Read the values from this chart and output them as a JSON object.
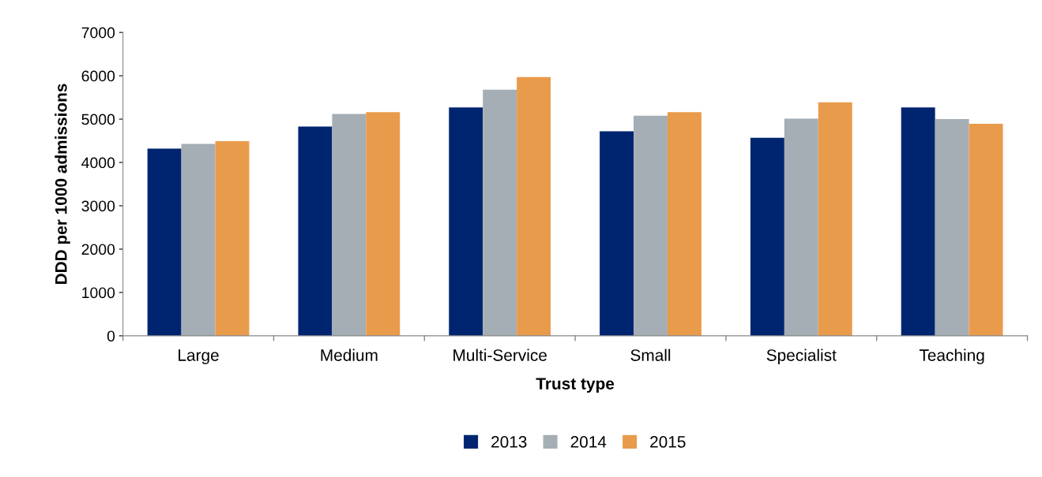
{
  "chart_data": {
    "type": "bar",
    "xlabel": "Trust type",
    "ylabel": "DDD per 1000 admissions",
    "categories": [
      "Large",
      "Medium",
      "Multi-Service",
      "Small",
      "Specialist",
      "Teaching"
    ],
    "series": [
      {
        "name": "2013",
        "color": "#002570",
        "values": [
          4320,
          4830,
          5270,
          4720,
          4570,
          5270
        ]
      },
      {
        "name": "2014",
        "color": "#a5aeb5",
        "values": [
          4430,
          5120,
          5680,
          5080,
          5010,
          5000
        ]
      },
      {
        "name": "2015",
        "color": "#e99b4c",
        "values": [
          4490,
          5160,
          5970,
          5160,
          5390,
          4890
        ]
      }
    ],
    "ylim": [
      0,
      7000
    ],
    "yticks": [
      0,
      1000,
      2000,
      3000,
      4000,
      5000,
      6000,
      7000
    ],
    "grid": false,
    "legend": "bottom"
  }
}
